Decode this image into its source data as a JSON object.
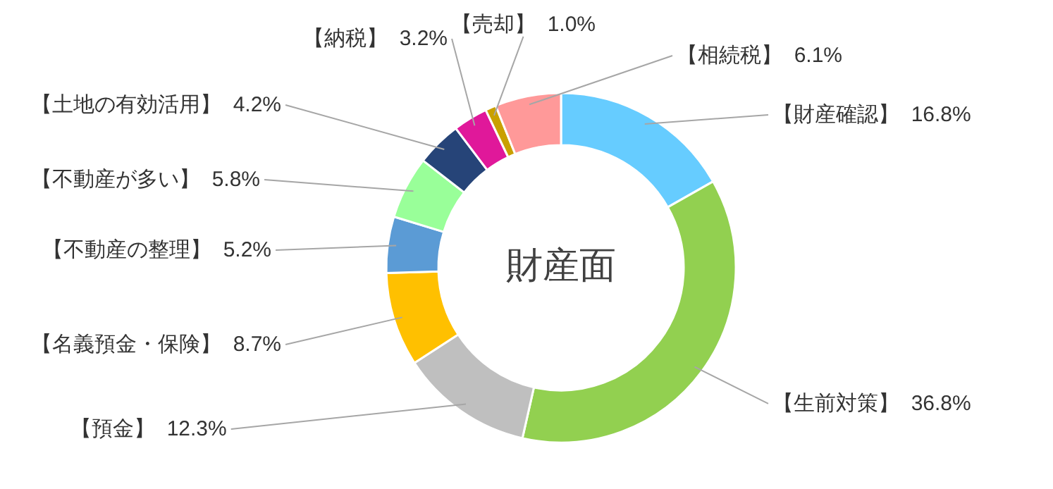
{
  "chart_data": {
    "type": "donut",
    "title": "財産面",
    "categories": [
      "【財産確認】",
      "【生前対策】",
      "【預金】",
      "【名義預金・保険】",
      "【不動産の整理】",
      "【不動産が多い】",
      "【土地の有効活用】",
      "【納税】",
      "【売却】",
      "【相続税】"
    ],
    "values": [
      16.8,
      36.8,
      12.3,
      8.7,
      5.2,
      5.8,
      4.2,
      3.2,
      1.0,
      6.1
    ],
    "value_labels": [
      "16.8%",
      "36.8%",
      "12.3%",
      "8.7%",
      "5.2%",
      "5.8%",
      "4.2%",
      "3.2%",
      "1.0%",
      "6.1%"
    ],
    "colors": [
      "#66ccff",
      "#92d050",
      "#bfbfbf",
      "#ffc000",
      "#5b9bd5",
      "#99ff99",
      "#264478",
      "#e0189a",
      "#c9a000",
      "#ff9999"
    ]
  }
}
